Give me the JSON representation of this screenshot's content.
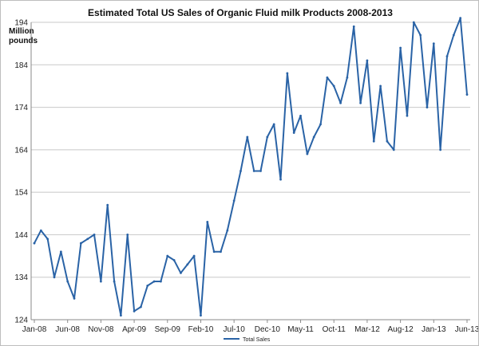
{
  "chart_data": {
    "type": "line",
    "title": "Estimated Total US Sales of Organic Fluid milk Products 2008-2013",
    "ylabel_lines": [
      "Million",
      "pounds"
    ],
    "xlabel": "",
    "ylim": [
      124,
      194
    ],
    "y_ticks": [
      124,
      134,
      144,
      154,
      164,
      174,
      184,
      194
    ],
    "x_tick_labels": [
      "Jan-08",
      "Jun-08",
      "Nov-08",
      "Apr-09",
      "Sep-09",
      "Feb-10",
      "Jul-10",
      "Dec-10",
      "May-11",
      "Oct-11",
      "Mar-12",
      "Aug-12",
      "Jan-13",
      "Jun-13"
    ],
    "x_tick_step_months": 5,
    "grid": "horizontal",
    "legend_position": "bottom",
    "series": [
      {
        "name": "Total Sales",
        "color": "#2a63a6",
        "x": [
          "Jan-08",
          "Feb-08",
          "Mar-08",
          "Apr-08",
          "May-08",
          "Jun-08",
          "Jul-08",
          "Aug-08",
          "Sep-08",
          "Oct-08",
          "Nov-08",
          "Dec-08",
          "Jan-09",
          "Feb-09",
          "Mar-09",
          "Apr-09",
          "May-09",
          "Jun-09",
          "Jul-09",
          "Aug-09",
          "Sep-09",
          "Oct-09",
          "Nov-09",
          "Dec-09",
          "Jan-10",
          "Feb-10",
          "Mar-10",
          "Apr-10",
          "May-10",
          "Jun-10",
          "Jul-10",
          "Aug-10",
          "Sep-10",
          "Oct-10",
          "Nov-10",
          "Dec-10",
          "Jan-11",
          "Feb-11",
          "Mar-11",
          "Apr-11",
          "May-11",
          "Jun-11",
          "Jul-11",
          "Aug-11",
          "Sep-11",
          "Oct-11",
          "Nov-11",
          "Dec-11",
          "Jan-12",
          "Feb-12",
          "Mar-12",
          "Apr-12",
          "May-12",
          "Jun-12",
          "Jul-12",
          "Aug-12",
          "Sep-12",
          "Oct-12",
          "Nov-12",
          "Dec-12",
          "Jan-13",
          "Feb-13",
          "Mar-13",
          "Apr-13",
          "May-13",
          "Jun-13"
        ],
        "values": [
          142,
          145,
          143,
          134,
          140,
          133,
          129,
          142,
          143,
          144,
          133,
          151,
          133,
          125,
          144,
          126,
          127,
          132,
          133,
          133,
          139,
          138,
          135,
          137,
          139,
          125,
          147,
          140,
          140,
          145,
          152,
          159,
          167,
          159,
          159,
          167,
          170,
          157,
          182,
          168,
          172,
          163,
          167,
          170,
          181,
          179,
          175,
          181,
          193,
          175,
          185,
          166,
          179,
          166,
          164,
          188,
          172,
          194,
          191,
          174,
          189,
          164,
          186,
          191,
          195,
          177
        ]
      }
    ]
  }
}
